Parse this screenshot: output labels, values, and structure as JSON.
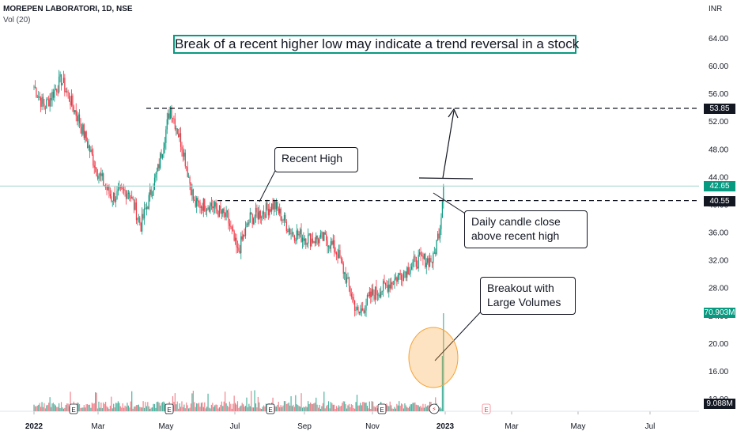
{
  "header": {
    "symbol_line": "MOREPEN LABORATORI, 1D, NSE",
    "volume_line": "Vol (20)",
    "currency": "INR"
  },
  "annotations": {
    "title": "Break of a recent higher low may indicate a trend reversal in a stock",
    "recent_high": "Recent High",
    "candle_close": [
      "Daily candle close",
      "above recent high"
    ],
    "breakout": [
      "Breakout with",
      "Large Volumes"
    ]
  },
  "price_tags": {
    "target": "53.85",
    "last": "42.65",
    "resistance": "40.55",
    "volume_last": "70.903M",
    "volume_avg": "9.088M"
  },
  "colors": {
    "up": "#089981",
    "down": "#f23645",
    "accent": "#2962ff",
    "highlight": "#f7a233",
    "text": "#131722"
  },
  "chart_data": {
    "type": "candlestick",
    "series_name": "MOREPEN LABORATORI",
    "timeframe": "1D",
    "exchange": "NSE",
    "x_ticks": [
      "2022",
      "Mar",
      "May",
      "Jul",
      "Sep",
      "Nov",
      "2023",
      "Mar",
      "May",
      "Jul"
    ],
    "y_ticks": [
      64,
      60,
      56,
      52,
      48,
      44,
      40,
      36,
      32,
      28,
      24,
      20,
      16,
      12
    ],
    "y_tick_labels": [
      "64.00",
      "60.00",
      "56.00",
      "52.00",
      "48.00",
      "44.00",
      "40.00",
      "36.00",
      "32.00",
      "28.00",
      "24.00",
      "20.00",
      "16.00",
      "12.00"
    ],
    "ylim": [
      11,
      68
    ],
    "close_path": [
      {
        "date": "2022-01-01",
        "close": 57
      },
      {
        "date": "2022-01-10",
        "close": 54
      },
      {
        "date": "2022-01-25",
        "close": 58
      },
      {
        "date": "2022-02-10",
        "close": 52
      },
      {
        "date": "2022-02-25",
        "close": 45
      },
      {
        "date": "2022-03-10",
        "close": 41
      },
      {
        "date": "2022-03-25",
        "close": 42
      },
      {
        "date": "2022-04-05",
        "close": 37
      },
      {
        "date": "2022-04-20",
        "close": 45
      },
      {
        "date": "2022-05-01",
        "close": 54
      },
      {
        "date": "2022-05-12",
        "close": 48
      },
      {
        "date": "2022-05-22",
        "close": 40
      },
      {
        "date": "2022-06-05",
        "close": 40
      },
      {
        "date": "2022-06-20",
        "close": 38
      },
      {
        "date": "2022-06-29",
        "close": 33
      },
      {
        "date": "2022-07-10",
        "close": 38
      },
      {
        "date": "2022-07-22",
        "close": 39
      },
      {
        "date": "2022-07-31",
        "close": 40
      },
      {
        "date": "2022-08-15",
        "close": 36
      },
      {
        "date": "2022-09-01",
        "close": 35
      },
      {
        "date": "2022-09-15",
        "close": 35
      },
      {
        "date": "2022-09-25",
        "close": 33
      },
      {
        "date": "2022-10-05",
        "close": 28
      },
      {
        "date": "2022-10-13",
        "close": 24
      },
      {
        "date": "2022-10-25",
        "close": 27
      },
      {
        "date": "2022-11-05",
        "close": 28
      },
      {
        "date": "2022-11-20",
        "close": 30
      },
      {
        "date": "2022-12-05",
        "close": 32
      },
      {
        "date": "2022-12-18",
        "close": 32
      },
      {
        "date": "2022-12-24",
        "close": 37
      },
      {
        "date": "2022-12-27",
        "close": 42.65
      }
    ],
    "levels": {
      "recent_high": 40.55,
      "target": 53.85,
      "last": 42.65
    },
    "volume": {
      "last": "70.903M",
      "average": "9.088M"
    },
    "grid": false,
    "legend": "none"
  }
}
